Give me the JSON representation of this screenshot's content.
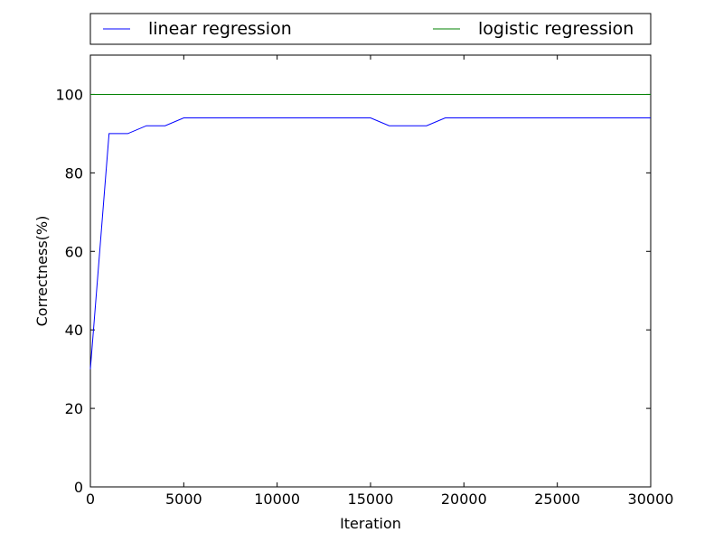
{
  "chart_data": {
    "type": "line",
    "xlabel": "Iteration",
    "ylabel": "Correctness(%)",
    "xlim": [
      0,
      30000
    ],
    "ylim": [
      0,
      110
    ],
    "xticks": [
      0,
      5000,
      10000,
      15000,
      20000,
      25000,
      30000
    ],
    "yticks": [
      0,
      20,
      40,
      60,
      80,
      100
    ],
    "grid": false,
    "legend_position": "top, outside plot",
    "series": [
      {
        "name": "linear regression",
        "color": "#0000ff",
        "x": [
          0,
          1000,
          2000,
          3000,
          4000,
          5000,
          6000,
          7000,
          8000,
          9000,
          10000,
          11000,
          12000,
          13000,
          14000,
          15000,
          16000,
          17000,
          18000,
          19000,
          20000,
          21000,
          22000,
          23000,
          24000,
          25000,
          26000,
          27000,
          28000,
          29000,
          30000
        ],
        "y": [
          30,
          90,
          90,
          92,
          92,
          94,
          94,
          94,
          94,
          94,
          94,
          94,
          94,
          94,
          94,
          94,
          92,
          92,
          92,
          94,
          94,
          94,
          94,
          94,
          94,
          94,
          94,
          94,
          94,
          94,
          94
        ]
      },
      {
        "name": "logistic regression",
        "color": "#008000",
        "x": [
          0,
          30000
        ],
        "y": [
          100,
          100
        ]
      }
    ]
  }
}
